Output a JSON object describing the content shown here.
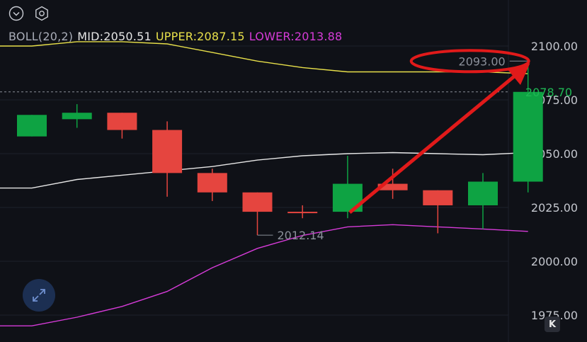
{
  "toolbar": {
    "left_icon": "chevron-down-icon",
    "right_icon": "hexagon-settings-icon"
  },
  "legend": {
    "indicator": "BOLL(20,2)",
    "mid_label": "MID:2050.51",
    "upper_label": "UPPER:2087.15",
    "lower_label": "LOWER:2013.88",
    "colors": {
      "indicator": "#a9adb8",
      "mid": "#e6e6e6",
      "upper": "#e8e04a",
      "lower": "#d63bd8"
    }
  },
  "annotations": {
    "high_marker": "2093.00",
    "low_marker": "2012.14",
    "current_price": "2078.70",
    "current_price_color": "#1fb854",
    "circle_color": "#e11a1a",
    "arrow_color": "#e11a1a"
  },
  "chart_data": {
    "type": "candlestick",
    "yticks": [
      "2100.00",
      "2075.00",
      "2050.00",
      "2025.00",
      "2000.00",
      "1975.00"
    ],
    "ylim": [
      1970,
      2115
    ],
    "up_color": "#0ea343",
    "down_color": "#e5453f",
    "candles": [
      {
        "open": 2058,
        "close": 2068,
        "high": 2068,
        "low": 2058
      },
      {
        "open": 2066,
        "close": 2069,
        "high": 2073,
        "low": 2062
      },
      {
        "open": 2069,
        "close": 2061,
        "high": 2069,
        "low": 2057
      },
      {
        "open": 2061,
        "close": 2041,
        "high": 2065,
        "low": 2030
      },
      {
        "open": 2041,
        "close": 2032,
        "high": 2043,
        "low": 2028
      },
      {
        "open": 2032,
        "close": 2023,
        "high": 2032,
        "low": 2012.14
      },
      {
        "open": 2023,
        "close": 2022.5,
        "high": 2026,
        "low": 2020
      },
      {
        "open": 2023,
        "close": 2036,
        "high": 2049,
        "low": 2020
      },
      {
        "open": 2036,
        "close": 2033,
        "high": 2043,
        "low": 2029
      },
      {
        "open": 2033,
        "close": 2026,
        "high": 2033,
        "low": 2013
      },
      {
        "open": 2026,
        "close": 2037,
        "high": 2041,
        "low": 2015
      },
      {
        "open": 2037,
        "close": 2078.7,
        "high": 2093,
        "low": 2032
      }
    ],
    "boll_upper": [
      2100,
      2102,
      2102,
      2101,
      2097,
      2093,
      2090,
      2088,
      2088,
      2088,
      2088,
      2087.15
    ],
    "boll_mid": [
      2034,
      2038,
      2040,
      2042,
      2044,
      2047,
      2049,
      2050,
      2050.5,
      2050,
      2049.5,
      2050.51
    ],
    "boll_lower": [
      1970,
      1974,
      1979,
      1986,
      1997,
      2006,
      2012,
      2016,
      2017,
      2016,
      2015,
      2013.88
    ]
  }
}
